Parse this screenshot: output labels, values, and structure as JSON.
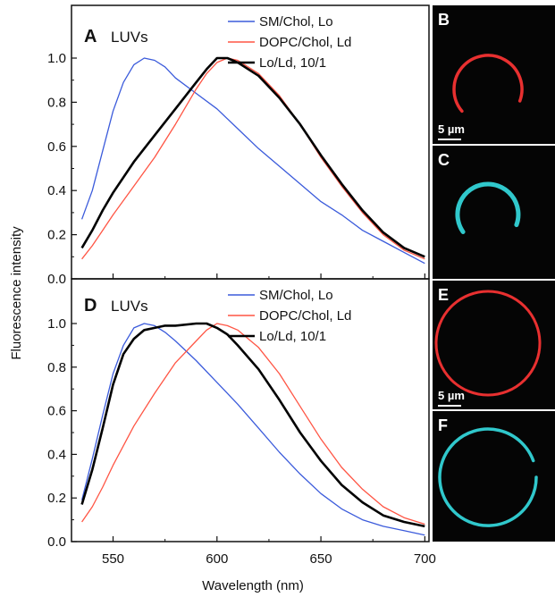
{
  "figure": {
    "ylabel": "Fluorescence intensity",
    "xlabel": "Wavelength (nm)",
    "xticks": [
      "550",
      "600",
      "650",
      "700"
    ],
    "yticks": [
      "0.0",
      "0.2",
      "0.4",
      "0.6",
      "0.8",
      "1.0"
    ]
  },
  "colors": {
    "lo": "#3b5bdb",
    "ld": "#ff5544",
    "mix": "#000000",
    "red_ring": "#e83030",
    "cyan_ring": "#30c8cc"
  },
  "chart_data": [
    {
      "type": "line",
      "panel": "A",
      "title": "LUVs",
      "xlabel": "Wavelength (nm)",
      "ylabel": "Fluorescence intensity",
      "xlim": [
        530,
        702
      ],
      "ylim": [
        0,
        1.15
      ],
      "grid": false,
      "legend": "top-right",
      "series": [
        {
          "name": "SM/Chol, Lo",
          "color": "#3b5bdb",
          "x": [
            535,
            540,
            545,
            550,
            555,
            560,
            565,
            570,
            575,
            580,
            590,
            600,
            610,
            620,
            630,
            640,
            650,
            660,
            670,
            680,
            690,
            700
          ],
          "y": [
            0.27,
            0.4,
            0.58,
            0.76,
            0.89,
            0.97,
            1.0,
            0.99,
            0.96,
            0.91,
            0.84,
            0.77,
            0.68,
            0.59,
            0.51,
            0.43,
            0.35,
            0.29,
            0.22,
            0.17,
            0.12,
            0.07
          ]
        },
        {
          "name": "DOPC/Chol, Ld",
          "color": "#ff5544",
          "x": [
            535,
            540,
            545,
            550,
            560,
            570,
            580,
            590,
            595,
            600,
            605,
            610,
            620,
            630,
            640,
            650,
            660,
            670,
            680,
            690,
            700
          ],
          "y": [
            0.09,
            0.15,
            0.22,
            0.29,
            0.42,
            0.55,
            0.7,
            0.86,
            0.93,
            0.98,
            1.0,
            0.99,
            0.93,
            0.83,
            0.7,
            0.55,
            0.42,
            0.3,
            0.2,
            0.13,
            0.09
          ]
        },
        {
          "name": "Lo/Ld, 10/1",
          "color": "#000000",
          "x": [
            535,
            540,
            545,
            550,
            560,
            570,
            580,
            590,
            595,
            600,
            605,
            610,
            620,
            630,
            640,
            650,
            660,
            670,
            680,
            690,
            700
          ],
          "y": [
            0.14,
            0.22,
            0.31,
            0.39,
            0.53,
            0.65,
            0.77,
            0.89,
            0.95,
            1.0,
            1.0,
            0.98,
            0.92,
            0.82,
            0.7,
            0.56,
            0.43,
            0.31,
            0.21,
            0.14,
            0.1
          ]
        }
      ]
    },
    {
      "type": "line",
      "panel": "D",
      "title": "LUVs",
      "xlabel": "Wavelength (nm)",
      "ylabel": "Fluorescence intensity",
      "xlim": [
        530,
        702
      ],
      "ylim": [
        0,
        1.15
      ],
      "grid": false,
      "legend": "top-right",
      "series": [
        {
          "name": "SM/Chol, Lo",
          "color": "#3b5bdb",
          "x": [
            535,
            540,
            545,
            550,
            555,
            560,
            565,
            570,
            575,
            580,
            590,
            600,
            610,
            620,
            630,
            640,
            650,
            660,
            670,
            680,
            690,
            700
          ],
          "y": [
            0.19,
            0.38,
            0.58,
            0.77,
            0.9,
            0.98,
            1.0,
            0.99,
            0.96,
            0.92,
            0.83,
            0.73,
            0.63,
            0.52,
            0.41,
            0.31,
            0.22,
            0.15,
            0.1,
            0.07,
            0.05,
            0.03
          ]
        },
        {
          "name": "DOPC/Chol, Ld",
          "color": "#ff5544",
          "x": [
            535,
            540,
            545,
            550,
            560,
            570,
            580,
            590,
            595,
            600,
            605,
            610,
            620,
            630,
            640,
            650,
            660,
            670,
            680,
            690,
            700
          ],
          "y": [
            0.09,
            0.16,
            0.25,
            0.35,
            0.53,
            0.68,
            0.82,
            0.92,
            0.97,
            1.0,
            0.99,
            0.97,
            0.89,
            0.77,
            0.62,
            0.47,
            0.34,
            0.24,
            0.16,
            0.11,
            0.08
          ]
        },
        {
          "name": "Lo/Ld, 10/1",
          "color": "#000000",
          "x": [
            535,
            540,
            545,
            550,
            555,
            560,
            565,
            570,
            575,
            580,
            590,
            595,
            600,
            605,
            610,
            620,
            630,
            640,
            650,
            660,
            670,
            680,
            690,
            700
          ],
          "y": [
            0.17,
            0.33,
            0.52,
            0.72,
            0.86,
            0.93,
            0.97,
            0.98,
            0.99,
            0.99,
            1.0,
            1.0,
            0.98,
            0.95,
            0.9,
            0.79,
            0.65,
            0.5,
            0.37,
            0.26,
            0.18,
            0.12,
            0.09,
            0.07
          ]
        }
      ]
    }
  ],
  "images": [
    {
      "letter": "B",
      "ring": "red",
      "arc_start": -20,
      "arc_end": 220,
      "scalebar": "5 µm"
    },
    {
      "letter": "C",
      "ring": "cyan",
      "arc_start": -20,
      "arc_end": 215,
      "scalebar": ""
    },
    {
      "letter": "E",
      "ring": "red",
      "arc_start": 0,
      "arc_end": 360,
      "scalebar": "5 µm"
    },
    {
      "letter": "F",
      "ring": "cyan",
      "arc_start": 20,
      "arc_end": 360,
      "scalebar": ""
    }
  ]
}
